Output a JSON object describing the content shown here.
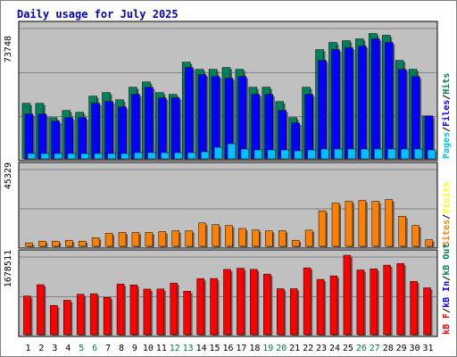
{
  "chart_data": [
    {
      "type": "bar",
      "title": "Daily usage for July 2025",
      "max_label": "73748",
      "x_tick_labels": [
        "1",
        "2",
        "3",
        "4",
        "5",
        "6",
        "7",
        "8",
        "9",
        "10",
        "11",
        "12",
        "13",
        "14",
        "15",
        "16",
        "17",
        "18",
        "19",
        "20",
        "21",
        "22",
        "23",
        "24",
        "25",
        "26",
        "27",
        "28",
        "29",
        "30",
        "31"
      ],
      "weekend_days": [
        "5",
        "6",
        "12",
        "13",
        "19",
        "20",
        "26",
        "27"
      ],
      "ylim": [
        0,
        73748
      ],
      "grid": true,
      "legend_position": "right",
      "series": [
        {
          "name": "Hits",
          "color": "#00805c",
          "values": [
            31000,
            31000,
            23000,
            27000,
            26000,
            35000,
            37000,
            33000,
            40000,
            43000,
            37000,
            36000,
            54000,
            50000,
            50000,
            51000,
            50000,
            40000,
            40000,
            32000,
            23000,
            40000,
            61000,
            65000,
            66000,
            67000,
            70000,
            69000,
            55000,
            50000,
            24000
          ]
        },
        {
          "name": "Files",
          "color": "#0000ff",
          "values": [
            25000,
            25000,
            21000,
            23000,
            23000,
            31000,
            32000,
            29000,
            36000,
            40000,
            34000,
            34000,
            51000,
            47000,
            46000,
            45000,
            46000,
            36000,
            36000,
            27000,
            20000,
            36000,
            55000,
            61000,
            62000,
            63000,
            67000,
            65000,
            50000,
            46000,
            24000
          ]
        },
        {
          "name": "Pages",
          "color": "#00c0ff",
          "values": [
            3000,
            3000,
            3000,
            3000,
            3000,
            3000,
            3000,
            3000,
            3500,
            3500,
            3500,
            3500,
            3500,
            4000,
            6500,
            8500,
            5500,
            5000,
            5000,
            5000,
            4500,
            5000,
            5500,
            5500,
            5500,
            5500,
            5500,
            5500,
            5500,
            5500,
            5000
          ]
        }
      ]
    },
    {
      "type": "bar",
      "max_label": "45329",
      "ylim": [
        0,
        45329
      ],
      "series": [
        {
          "name": "Visits",
          "color": "#ffff00",
          "values": [
            0,
            0,
            0,
            0,
            0,
            0,
            0,
            0,
            0,
            0,
            0,
            0,
            0,
            0,
            0,
            0,
            0,
            0,
            0,
            0,
            0,
            0,
            0,
            0,
            0,
            0,
            0,
            0,
            0,
            0,
            0
          ]
        },
        {
          "name": "Sites",
          "color": "#ff8000",
          "values": [
            2000,
            3000,
            3000,
            3500,
            3000,
            5000,
            7500,
            8000,
            8000,
            8000,
            8500,
            9000,
            9000,
            13500,
            12500,
            12000,
            10300,
            9500,
            9000,
            9000,
            3500,
            9300,
            20500,
            25000,
            26000,
            26500,
            26000,
            27000,
            17400,
            12000,
            3800
          ]
        }
      ]
    },
    {
      "type": "bar",
      "max_label": "1678511",
      "ylim": [
        0,
        1678511
      ],
      "series": [
        {
          "name": "kB F",
          "color": "#ff0000",
          "values": [
            817000,
            1056000,
            618000,
            727000,
            854000,
            866000,
            788000,
            1072000,
            1052000,
            963000,
            965000,
            1091000,
            918000,
            1185000,
            1187000,
            1379000,
            1403000,
            1379000,
            1280000,
            971000,
            971000,
            1412000,
            1168000,
            1243000,
            1678000,
            1367000,
            1390000,
            1469000,
            1504000,
            1128000,
            990000
          ]
        },
        {
          "name": "kB In",
          "color": "#0000ff",
          "values": [
            0,
            0,
            0,
            0,
            0,
            0,
            0,
            0,
            0,
            0,
            0,
            0,
            0,
            0,
            0,
            0,
            0,
            0,
            0,
            0,
            0,
            0,
            0,
            0,
            0,
            0,
            0,
            0,
            0,
            0,
            0
          ]
        },
        {
          "name": "kB Out",
          "color": "#00805c",
          "values": [
            0,
            0,
            0,
            0,
            0,
            0,
            0,
            0,
            0,
            0,
            0,
            0,
            0,
            0,
            0,
            0,
            0,
            0,
            0,
            0,
            0,
            0,
            0,
            0,
            0,
            0,
            0,
            0,
            0,
            0,
            0
          ]
        }
      ]
    }
  ],
  "colors": {
    "title": "#0000c0",
    "weekend_label": "#008040",
    "weekday_label": "#000000",
    "panel_bg": "#c0c0c0",
    "grid": "#808080",
    "frame": "#000000",
    "legend_separator": "#000000"
  }
}
